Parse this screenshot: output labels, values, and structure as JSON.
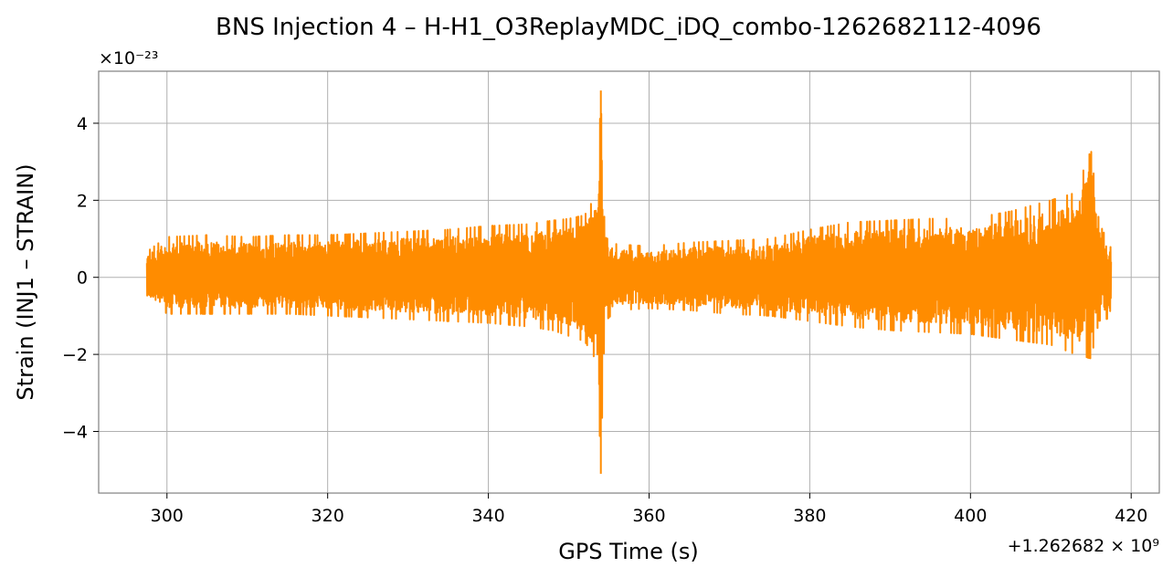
{
  "chart_data": {
    "type": "line",
    "title": "BNS Injection 4 – H-H1_O3ReplayMDC_iDQ_combo-1262682112-4096",
    "xlabel": "GPS Time (s)",
    "ylabel": "Strain (INJ1 – STRAIN)",
    "x_offset_label": "+1.262682 × 10⁹",
    "y_scale_label": "×10⁻²³",
    "xlim": [
      291.5,
      423.5
    ],
    "ylim": [
      -5.6,
      5.35
    ],
    "x_ticks": [
      300,
      320,
      340,
      360,
      380,
      400,
      420
    ],
    "x_tick_labels": [
      "300",
      "320",
      "340",
      "360",
      "380",
      "400",
      "420"
    ],
    "y_ticks": [
      -4,
      -2,
      0,
      2,
      4
    ],
    "y_tick_labels": [
      "−4",
      "−2",
      "0",
      "2",
      "4"
    ],
    "grid": true,
    "series": [
      {
        "color": "#ff8c00",
        "x_range": [
          297.5,
          417.5
        ],
        "envelope": {
          "x": [
            297.5,
            300,
            305,
            310,
            315,
            320,
            325,
            330,
            335,
            340,
            345,
            348,
            350,
            352,
            353.5,
            354,
            354.5,
            356,
            360,
            365,
            370,
            375,
            380,
            385,
            390,
            395,
            400,
            405,
            410,
            413,
            415,
            416,
            417.5
          ],
          "upper": [
            0.7,
            1.1,
            1.15,
            1.1,
            1.15,
            1.15,
            1.2,
            1.25,
            1.3,
            1.4,
            1.45,
            1.55,
            1.6,
            1.7,
            2.3,
            4.85,
            1.1,
            0.9,
            0.85,
            0.95,
            1.0,
            1.05,
            1.3,
            1.5,
            1.55,
            1.6,
            1.6,
            1.8,
            2.1,
            2.3,
            3.45,
            1.5,
            0.8
          ],
          "lower": [
            -0.6,
            -1.0,
            -1.0,
            -1.0,
            -1.0,
            -1.05,
            -1.1,
            -1.15,
            -1.2,
            -1.25,
            -1.35,
            -1.45,
            -1.6,
            -1.75,
            -2.3,
            -5.1,
            -1.2,
            -0.9,
            -0.85,
            -0.9,
            -1.0,
            -1.05,
            -1.2,
            -1.35,
            -1.45,
            -1.5,
            -1.55,
            -1.7,
            -1.85,
            -2.1,
            -2.25,
            -1.2,
            -1.1
          ]
        }
      }
    ]
  }
}
